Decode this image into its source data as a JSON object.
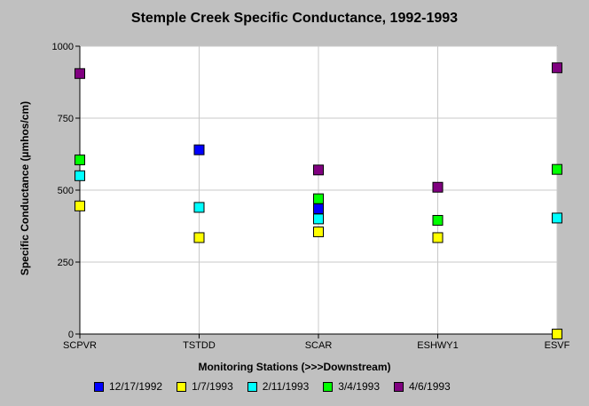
{
  "chart_data": {
    "type": "scatter",
    "title": "Stemple Creek Specific Conductance, 1992-1993",
    "xlabel": "Monitoring Stations (>>>Downstream)",
    "ylabel": "Specific Conductance (µmhos/cm)",
    "categories": [
      "SCPVR",
      "TSTDD",
      "SCAR",
      "ESHWY1",
      "ESVF"
    ],
    "ylim": [
      0,
      1000
    ],
    "yticks": [
      0,
      250,
      500,
      750,
      1000
    ],
    "grid": true,
    "legend_position": "bottom",
    "series": [
      {
        "name": "12/17/1992",
        "color": "#0000ff",
        "values": [
          null,
          640,
          435,
          null,
          null
        ]
      },
      {
        "name": "1/7/1993",
        "color": "#ffff00",
        "values": [
          445,
          335,
          355,
          335,
          0
        ]
      },
      {
        "name": "2/11/1993",
        "color": "#00ffff",
        "values": [
          550,
          440,
          400,
          null,
          403
        ]
      },
      {
        "name": "3/4/1993",
        "color": "#00ff00",
        "values": [
          605,
          null,
          470,
          395,
          572
        ]
      },
      {
        "name": "4/6/1993",
        "color": "#800080",
        "values": [
          905,
          null,
          570,
          510,
          925
        ]
      }
    ]
  }
}
